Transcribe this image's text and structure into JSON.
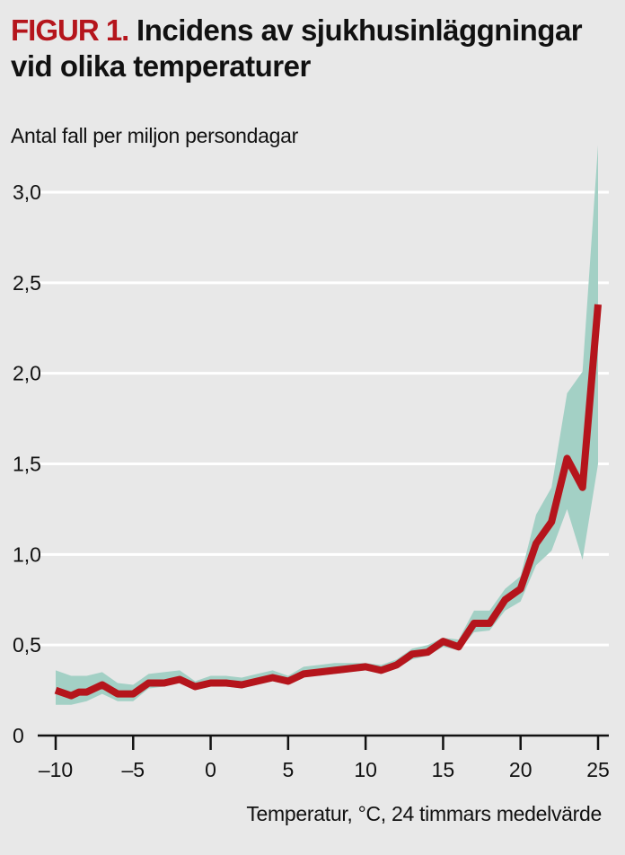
{
  "header": {
    "figure_label": "FIGUR 1.",
    "title": "Incidens av sjukhusinläggningar vid olika temperaturer"
  },
  "chart_data": {
    "type": "line",
    "title": "Incidens av sjukhusinläggningar vid olika temperaturer",
    "ylabel": "Antal fall per miljon persondagar",
    "xlabel": "Temperatur, °C, 24 timmars medelvärde",
    "xlim": [
      -10,
      25
    ],
    "ylim": [
      0,
      3.0
    ],
    "xticks": [
      -10,
      -5,
      0,
      5,
      10,
      15,
      20,
      25
    ],
    "xtick_labels": [
      "–10",
      "–5",
      "0",
      "5",
      "10",
      "15",
      "20",
      "25"
    ],
    "yticks": [
      0,
      0.5,
      1.0,
      1.5,
      2.0,
      2.5,
      3.0
    ],
    "ytick_labels": [
      "0",
      "0,5",
      "1,0",
      "1,5",
      "2,0",
      "2,5",
      "3,0"
    ],
    "grid": "horizontal",
    "colors": {
      "line": "#b5151c",
      "band": "#a3d0c5",
      "background": "#e8e8e8",
      "grid": "#ffffff"
    },
    "series": [
      {
        "name": "Incidens",
        "x": [
          -10,
          -9,
          -8.5,
          -8,
          -7,
          -6,
          -5,
          -4,
          -3,
          -2,
          -1,
          0,
          1,
          2,
          3,
          4,
          5,
          6,
          7,
          8,
          9,
          10,
          11,
          12,
          13,
          14,
          15,
          16,
          17,
          18,
          19,
          20,
          21,
          22,
          23,
          24,
          25
        ],
        "values": [
          0.25,
          0.22,
          0.24,
          0.24,
          0.28,
          0.23,
          0.23,
          0.29,
          0.29,
          0.31,
          0.27,
          0.29,
          0.29,
          0.28,
          0.3,
          0.32,
          0.3,
          0.34,
          0.35,
          0.36,
          0.37,
          0.38,
          0.36,
          0.39,
          0.45,
          0.46,
          0.52,
          0.49,
          0.62,
          0.62,
          0.75,
          0.81,
          1.06,
          1.18,
          1.53,
          1.37,
          2.38
        ],
        "ci_lower": [
          0.17,
          0.17,
          0.18,
          0.19,
          0.23,
          0.19,
          0.19,
          0.26,
          0.27,
          0.29,
          0.25,
          0.27,
          0.27,
          0.26,
          0.28,
          0.3,
          0.28,
          0.33,
          0.33,
          0.34,
          0.35,
          0.36,
          0.34,
          0.37,
          0.42,
          0.44,
          0.49,
          0.47,
          0.57,
          0.58,
          0.69,
          0.74,
          0.94,
          1.02,
          1.25,
          0.97,
          1.5
        ],
        "ci_upper": [
          0.36,
          0.33,
          0.33,
          0.33,
          0.35,
          0.29,
          0.28,
          0.34,
          0.35,
          0.36,
          0.3,
          0.33,
          0.33,
          0.32,
          0.34,
          0.36,
          0.33,
          0.38,
          0.39,
          0.4,
          0.4,
          0.4,
          0.39,
          0.42,
          0.48,
          0.5,
          0.54,
          0.53,
          0.69,
          0.69,
          0.81,
          0.88,
          1.22,
          1.37,
          1.89,
          2.01,
          3.26
        ]
      }
    ]
  }
}
